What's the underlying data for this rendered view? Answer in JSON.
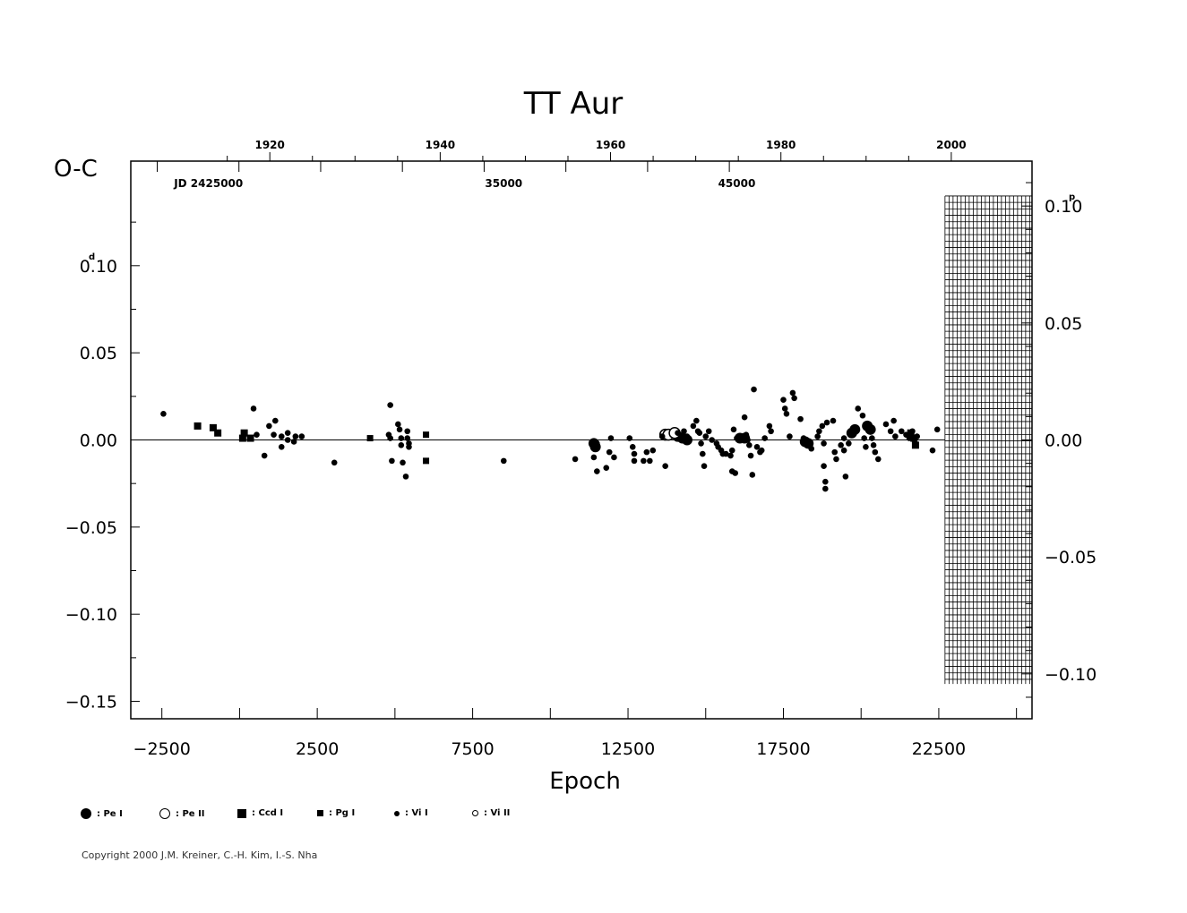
{
  "chart_data": {
    "type": "scatter",
    "title": "TT Aur",
    "xlabel": "Epoch",
    "ylabel": "O-C",
    "left_axis_unit": "d",
    "right_axis_unit": "p",
    "xlim": [
      -3500,
      25500
    ],
    "ylim": [
      -0.16,
      0.16
    ],
    "x_ticks": [
      -2500,
      2500,
      7500,
      12500,
      17500,
      22500
    ],
    "x_tick_labels": [
      "−2500",
      "2500",
      "7500",
      "12500",
      "17500",
      "22500"
    ],
    "y_ticks": [
      0.1,
      0.05,
      0.0,
      -0.05,
      -0.1,
      -0.15
    ],
    "y_tick_labels": [
      "0.10",
      "0.05",
      "0.00",
      "−0.05",
      "−0.10",
      "−0.15"
    ],
    "right_ticks": [
      0.1,
      0.05,
      0.0,
      -0.05,
      -0.1
    ],
    "right_tick_labels": [
      "0.10",
      "0.05",
      "0.00",
      "−0.05",
      "−0.10"
    ],
    "right_axis_range": [
      -0.1192,
      0.1192
    ],
    "top_year_ticks": [
      1920,
      1940,
      1960,
      1980,
      2000
    ],
    "top_year_epochs": [
      974,
      6456,
      11938,
      17420,
      22902
    ],
    "top_jd_labels": [
      {
        "text": "JD  2425000",
        "epoch": -1000
      },
      {
        "text": "35000",
        "epoch": 8500
      },
      {
        "text": "45000",
        "epoch": 16000
      }
    ],
    "grid": false,
    "hatched_region_x": [
      22700,
      25500
    ],
    "hatched_region_y": [
      -0.14,
      0.14
    ],
    "series": [
      {
        "name": ": Pe I",
        "marker": "filled-circle-large",
        "points": [
          [
            11400,
            -0.002
          ],
          [
            11450,
            -0.004
          ],
          [
            14100,
            0.002
          ],
          [
            14250,
            0.001
          ],
          [
            14400,
            0.0
          ],
          [
            16100,
            0.001
          ],
          [
            16250,
            0.001
          ],
          [
            18200,
            -0.001
          ],
          [
            18300,
            -0.002
          ],
          [
            19700,
            0.004
          ],
          [
            19800,
            0.006
          ],
          [
            20200,
            0.008
          ],
          [
            20300,
            0.006
          ]
        ]
      },
      {
        "name": ": Pe II",
        "marker": "open-circle-large",
        "points": [
          [
            13700,
            0.003
          ],
          [
            13800,
            0.003
          ],
          [
            14000,
            0.004
          ]
        ]
      },
      {
        "name": ": Ccd I",
        "marker": "filled-square-large",
        "points": [
          [
            -1350,
            0.008
          ],
          [
            -850,
            0.007
          ],
          [
            -700,
            0.004
          ],
          [
            150,
            0.004
          ],
          [
            100,
            0.001
          ],
          [
            350,
            0.001
          ],
          [
            21600,
            0.004
          ],
          [
            21700,
            0.001
          ],
          [
            21750,
            -0.003
          ]
        ]
      },
      {
        "name": ": Pg I",
        "marker": "filled-square-small",
        "points": [
          [
            4200,
            0.001
          ],
          [
            6000,
            0.003
          ],
          [
            6000,
            -0.012
          ]
        ]
      },
      {
        "name": ": Vi I",
        "marker": "filled-circle-small",
        "points": [
          [
            -2450,
            0.015
          ],
          [
            450,
            0.018
          ],
          [
            550,
            0.003
          ],
          [
            800,
            -0.009
          ],
          [
            950,
            0.008
          ],
          [
            1150,
            0.011
          ],
          [
            1100,
            0.003
          ],
          [
            1350,
            0.002
          ],
          [
            1350,
            -0.004
          ],
          [
            1550,
            0.004
          ],
          [
            1550,
            0.0
          ],
          [
            1800,
            0.002
          ],
          [
            1750,
            -0.001
          ],
          [
            2000,
            0.002
          ],
          [
            3050,
            -0.013
          ],
          [
            4850,
            0.02
          ],
          [
            4800,
            0.003
          ],
          [
            4850,
            0.001
          ],
          [
            4900,
            -0.012
          ],
          [
            5100,
            0.009
          ],
          [
            5150,
            0.006
          ],
          [
            5200,
            0.001
          ],
          [
            5200,
            -0.003
          ],
          [
            5250,
            -0.013
          ],
          [
            5350,
            -0.021
          ],
          [
            5400,
            0.005
          ],
          [
            5400,
            0.001
          ],
          [
            5450,
            -0.002
          ],
          [
            5450,
            -0.004
          ],
          [
            8500,
            -0.012
          ],
          [
            10800,
            -0.011
          ],
          [
            11400,
            -0.01
          ],
          [
            11500,
            -0.018
          ],
          [
            11500,
            -0.002
          ],
          [
            11800,
            -0.016
          ],
          [
            11900,
            -0.007
          ],
          [
            11950,
            0.001
          ],
          [
            12050,
            -0.01
          ],
          [
            12550,
            0.001
          ],
          [
            12650,
            -0.004
          ],
          [
            12700,
            -0.008
          ],
          [
            12700,
            -0.012
          ],
          [
            13000,
            -0.012
          ],
          [
            13100,
            -0.007
          ],
          [
            13200,
            -0.012
          ],
          [
            13300,
            -0.006
          ],
          [
            13600,
            0.002
          ],
          [
            13700,
            -0.015
          ],
          [
            14100,
            0.004
          ],
          [
            14300,
            0.005
          ],
          [
            14400,
            0.002
          ],
          [
            14600,
            0.008
          ],
          [
            14700,
            0.011
          ],
          [
            14750,
            0.005
          ],
          [
            14800,
            0.004
          ],
          [
            14850,
            -0.002
          ],
          [
            14900,
            -0.008
          ],
          [
            14950,
            -0.015
          ],
          [
            15000,
            0.002
          ],
          [
            15100,
            0.005
          ],
          [
            15200,
            0.0
          ],
          [
            15350,
            -0.002
          ],
          [
            15400,
            -0.004
          ],
          [
            15500,
            -0.006
          ],
          [
            15550,
            -0.008
          ],
          [
            15650,
            -0.008
          ],
          [
            15800,
            -0.009
          ],
          [
            15850,
            -0.006
          ],
          [
            15850,
            -0.018
          ],
          [
            15900,
            0.006
          ],
          [
            15950,
            -0.019
          ],
          [
            16000,
            0.001
          ],
          [
            16250,
            0.013
          ],
          [
            16300,
            0.003
          ],
          [
            16350,
            0.0
          ],
          [
            16400,
            -0.003
          ],
          [
            16450,
            -0.009
          ],
          [
            16500,
            -0.02
          ],
          [
            16550,
            0.029
          ],
          [
            16650,
            -0.004
          ],
          [
            16750,
            -0.007
          ],
          [
            16800,
            -0.006
          ],
          [
            16900,
            0.001
          ],
          [
            17050,
            0.008
          ],
          [
            17100,
            0.005
          ],
          [
            17500,
            0.023
          ],
          [
            17550,
            0.018
          ],
          [
            17600,
            0.015
          ],
          [
            17700,
            0.002
          ],
          [
            17800,
            0.027
          ],
          [
            17850,
            0.024
          ],
          [
            18050,
            0.012
          ],
          [
            18150,
            0.001
          ],
          [
            18250,
            -0.003
          ],
          [
            18350,
            -0.002
          ],
          [
            18400,
            -0.005
          ],
          [
            18600,
            0.002
          ],
          [
            18650,
            0.005
          ],
          [
            18750,
            0.008
          ],
          [
            18800,
            -0.002
          ],
          [
            18800,
            -0.015
          ],
          [
            18850,
            -0.024
          ],
          [
            18850,
            -0.028
          ],
          [
            18900,
            0.01
          ],
          [
            19100,
            0.011
          ],
          [
            19150,
            -0.007
          ],
          [
            19200,
            -0.011
          ],
          [
            19350,
            -0.003
          ],
          [
            19450,
            0.001
          ],
          [
            19450,
            -0.006
          ],
          [
            19500,
            -0.021
          ],
          [
            19600,
            -0.002
          ],
          [
            19900,
            0.018
          ],
          [
            20050,
            0.014
          ],
          [
            20100,
            0.001
          ],
          [
            20150,
            -0.004
          ],
          [
            20300,
            0.006
          ],
          [
            20350,
            0.001
          ],
          [
            20400,
            -0.003
          ],
          [
            20450,
            -0.007
          ],
          [
            20550,
            -0.011
          ],
          [
            20800,
            0.009
          ],
          [
            20950,
            0.005
          ],
          [
            21050,
            0.011
          ],
          [
            21100,
            0.002
          ],
          [
            21300,
            0.005
          ],
          [
            21450,
            0.003
          ],
          [
            21550,
            0.001
          ],
          [
            21650,
            0.005
          ],
          [
            21800,
            0.002
          ],
          [
            22300,
            -0.006
          ],
          [
            22450,
            0.006
          ]
        ]
      },
      {
        "name": ": Vi II",
        "marker": "open-circle-small",
        "points": []
      }
    ]
  },
  "copyright": "Copyright 2000 J.M. Kreiner, C.-H. Kim, I.-S. Nha"
}
